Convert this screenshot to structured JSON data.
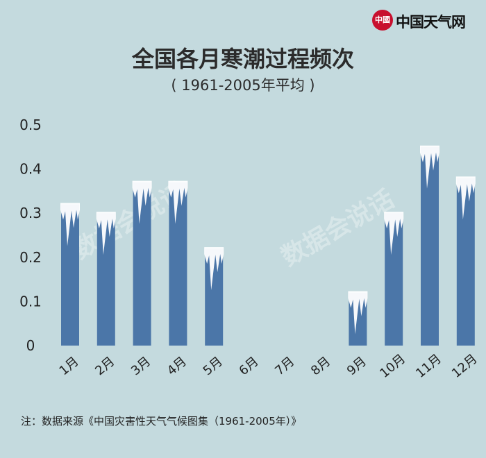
{
  "logo": {
    "seal": "中國",
    "text": "中国天气网"
  },
  "watermark": "数据会说话",
  "note": "注：数据来源《中国灾害性天气气候图集（1961-2005年）》",
  "chart_data": {
    "type": "bar",
    "title": "全国各月寒潮过程频次",
    "subtitle": "( 1961-2005年平均 )",
    "categories": [
      "1月",
      "2月",
      "3月",
      "4月",
      "5月",
      "6月",
      "7月",
      "8月",
      "9月",
      "10月",
      "11月",
      "12月"
    ],
    "values": [
      0.32,
      0.3,
      0.37,
      0.37,
      0.22,
      0,
      0,
      0,
      0.12,
      0.3,
      0.45,
      0.38
    ],
    "yticks": [
      "0",
      "0.1",
      "0.2",
      "0.3",
      "0.4",
      "0.5"
    ],
    "ylim": [
      0,
      0.5
    ],
    "grid": false,
    "colors": {
      "bar": "#4b76a8",
      "ice": "#ffffff",
      "axis_text": "#222222"
    }
  }
}
